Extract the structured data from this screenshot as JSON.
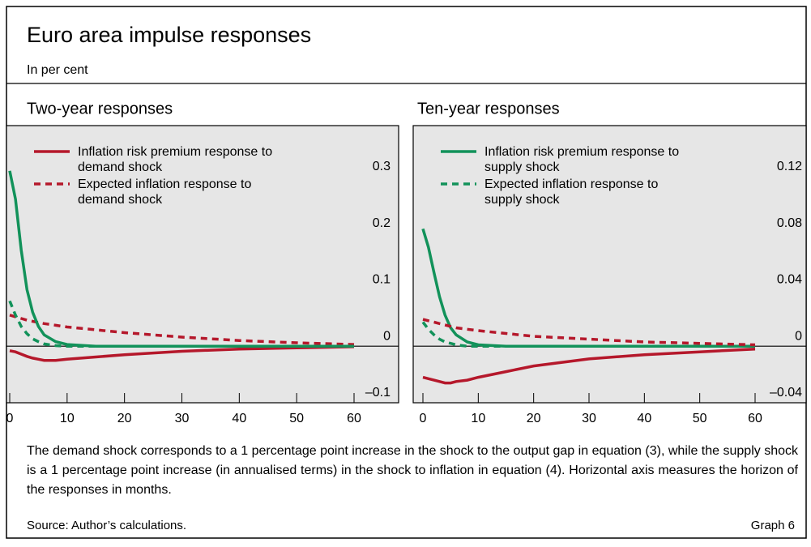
{
  "header": {
    "title": "Euro area impulse responses",
    "subtitle": "In per cent"
  },
  "chart_data": [
    {
      "type": "line",
      "title": "Two-year responses",
      "x": [
        0,
        1,
        2,
        3,
        4,
        5,
        6,
        8,
        10,
        15,
        20,
        30,
        40,
        50,
        60
      ],
      "series": [
        {
          "name": "Inflation risk premium response to demand shock",
          "color": "#b5182b",
          "style": "solid",
          "values": [
            -0.008,
            -0.01,
            -0.014,
            -0.018,
            -0.021,
            -0.023,
            -0.025,
            -0.025,
            -0.023,
            -0.019,
            -0.015,
            -0.009,
            -0.005,
            -0.003,
            -0.001
          ]
        },
        {
          "name": "Expected inflation response to demand shock",
          "color": "#b5182b",
          "style": "dashed",
          "values": [
            0.055,
            0.052,
            0.049,
            0.046,
            0.044,
            0.042,
            0.04,
            0.037,
            0.034,
            0.029,
            0.024,
            0.016,
            0.01,
            0.006,
            0.003
          ]
        },
        {
          "color": "#12925a",
          "style": "solid",
          "values": [
            0.31,
            0.26,
            0.17,
            0.1,
            0.06,
            0.035,
            0.02,
            0.008,
            0.003,
            0,
            0,
            0,
            0,
            0,
            0
          ]
        },
        {
          "color": "#12925a",
          "style": "dashed",
          "values": [
            0.08,
            0.055,
            0.035,
            0.022,
            0.013,
            0.008,
            0.004,
            0.001,
            0,
            0,
            0,
            0,
            0,
            0,
            0
          ]
        }
      ],
      "xlim": [
        0,
        60
      ],
      "xticks": [
        0,
        10,
        20,
        30,
        40,
        50,
        60
      ],
      "ylim": [
        -0.1,
        0.39
      ],
      "yticks": [
        {
          "value": -0.1,
          "label": "–0.1"
        },
        0,
        0.1,
        0.2,
        0.3
      ]
    },
    {
      "type": "line",
      "title": "Ten-year responses",
      "x": [
        0,
        1,
        2,
        3,
        4,
        5,
        6,
        8,
        10,
        15,
        20,
        30,
        40,
        50,
        60
      ],
      "series": [
        {
          "name": "Inflation risk premium response to supply shock",
          "color": "#12925a",
          "style": "solid",
          "values": [
            0.083,
            0.07,
            0.052,
            0.035,
            0.022,
            0.013,
            0.008,
            0.003,
            0.001,
            0,
            0,
            0,
            0,
            0,
            0
          ]
        },
        {
          "name": "Expected inflation response to supply shock",
          "color": "#12925a",
          "style": "dashed",
          "values": [
            0.017,
            0.012,
            0.008,
            0.005,
            0.003,
            0.002,
            0.001,
            0,
            0,
            0,
            0,
            0,
            0,
            0,
            0
          ]
        },
        {
          "color": "#b5182b",
          "style": "solid",
          "values": [
            -0.022,
            -0.023,
            -0.024,
            -0.025,
            -0.026,
            -0.026,
            -0.025,
            -0.024,
            -0.022,
            -0.018,
            -0.014,
            -0.009,
            -0.006,
            -0.004,
            -0.002
          ]
        },
        {
          "color": "#b5182b",
          "style": "dashed",
          "values": [
            0.019,
            0.018,
            0.017,
            0.016,
            0.015,
            0.014,
            0.013,
            0.012,
            0.011,
            0.009,
            0.007,
            0.005,
            0.003,
            0.002,
            0.001
          ]
        }
      ],
      "xlim": [
        0,
        60
      ],
      "xticks": [
        0,
        10,
        20,
        30,
        40,
        50,
        60
      ],
      "ylim": [
        -0.04,
        0.156
      ],
      "yticks": [
        {
          "value": -0.04,
          "label": "–0.04"
        },
        0,
        0.04,
        0.08,
        0.12
      ]
    }
  ],
  "footer": {
    "note": "The demand shock corresponds to a 1 percentage point increase in the shock to the output gap in equation (3), while the supply shock is a 1 percentage point increase (in annualised terms) in the shock to inflation in equation (4). Horizontal axis measures the horizon of the responses in months.",
    "source": "Source: Author’s calculations.",
    "label": "Graph 6"
  }
}
